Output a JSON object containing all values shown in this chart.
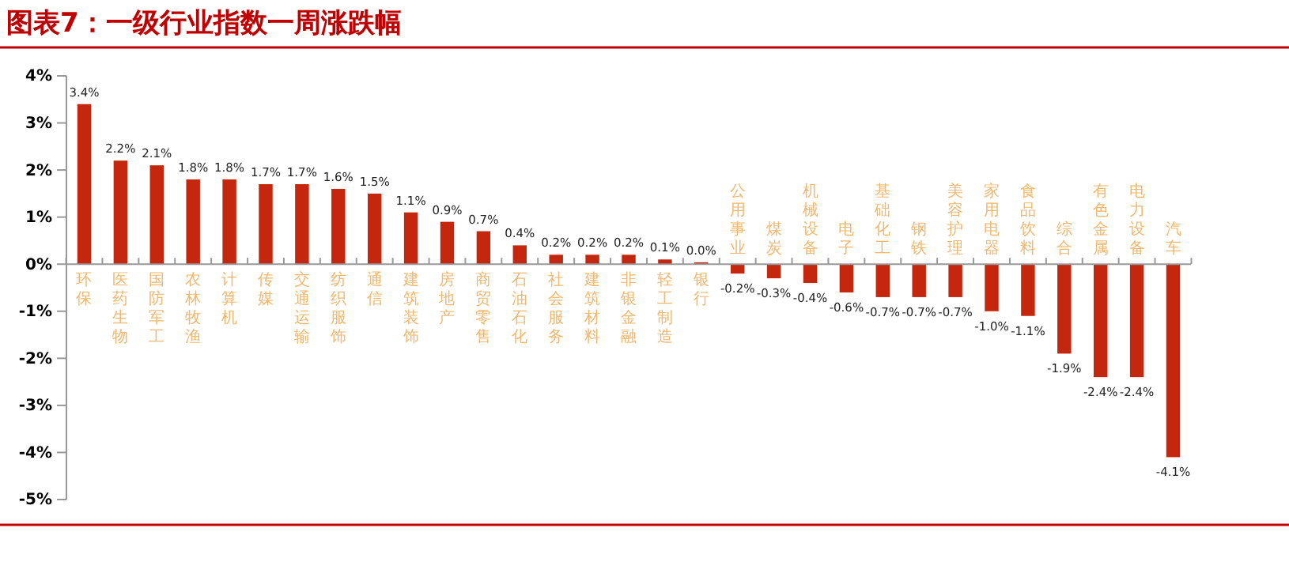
{
  "chart_data": {
    "type": "bar",
    "title": "图表7：一级行业指数一周涨跌幅",
    "categories": [
      "环保",
      "医药生物",
      "国防军工",
      "农林牧渔",
      "计算机",
      "传媒",
      "交通运输",
      "纺织服饰",
      "通信",
      "建筑装饰",
      "房地产",
      "商贸零售",
      "石油石化",
      "社会服务",
      "建筑材料",
      "非银金融",
      "轻工制造",
      "银行",
      "公用事业",
      "煤炭",
      "机械设备",
      "电子",
      "基础化工",
      "钢铁",
      "美容护理",
      "家用电器",
      "食品饮料",
      "综合",
      "有色金属",
      "电力设备",
      "汽车"
    ],
    "series": [
      {
        "color": "#c4260e",
        "values": [
          3.4,
          2.2,
          2.1,
          1.8,
          1.8,
          1.7,
          1.7,
          1.6,
          1.5,
          1.1,
          0.9,
          0.7,
          0.4,
          0.2,
          0.2,
          0.2,
          0.1,
          0.04,
          -0.2,
          -0.3,
          -0.4,
          -0.6,
          -0.7,
          -0.7,
          -0.7,
          -1.0,
          -1.1,
          -1.9,
          -2.4,
          -2.4,
          -4.1
        ],
        "value_labels": [
          "3.4%",
          "2.2%",
          "2.1%",
          "1.8%",
          "1.8%",
          "1.7%",
          "1.7%",
          "1.6%",
          "1.5%",
          "1.1%",
          "0.9%",
          "0.7%",
          "0.4%",
          "0.2%",
          "0.2%",
          "0.2%",
          "0.1%",
          "0.0%",
          "-0.2%",
          "-0.3%",
          "-0.4%",
          "-0.6%",
          "-0.7%",
          "-0.7%",
          "-0.7%",
          "-1.0%",
          "-1.1%",
          "-1.9%",
          "-2.4%",
          "-2.4%",
          "-4.1%"
        ]
      }
    ],
    "ylim": [
      -5,
      4
    ],
    "yticks": [
      {
        "value": 4,
        "label": "4%"
      },
      {
        "value": 3,
        "label": "3%"
      },
      {
        "value": 2,
        "label": "2%"
      },
      {
        "value": 1,
        "label": "1%"
      },
      {
        "value": 0,
        "label": "0%"
      },
      {
        "value": -1,
        "label": "-1%"
      },
      {
        "value": -2,
        "label": "-2%"
      },
      {
        "value": -3,
        "label": "-3%"
      },
      {
        "value": -4,
        "label": "-4%"
      },
      {
        "value": -5,
        "label": "-5%"
      }
    ],
    "grid": false
  }
}
